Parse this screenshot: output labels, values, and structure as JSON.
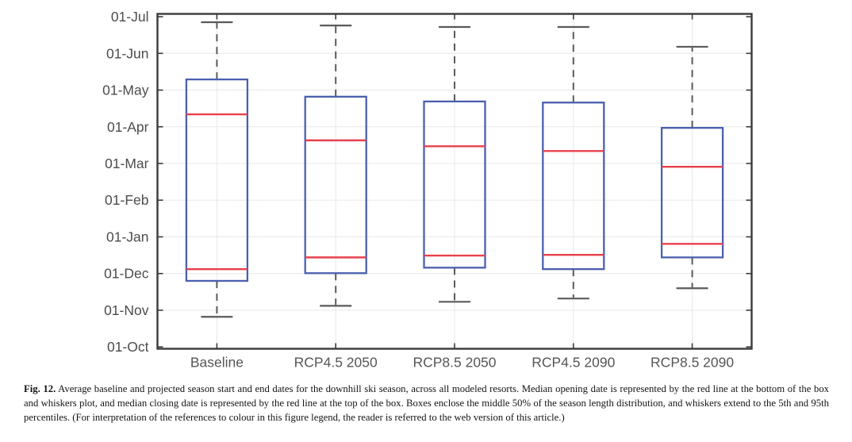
{
  "figure": {
    "caption_label": "Fig. 12.",
    "caption_text": " Average baseline and projected season start and end dates for the downhill ski season, across all modeled resorts. Median opening date is represented by the red line at the bottom of the box and whiskers plot, and median closing date is represented by the red line at the top of the box. Boxes enclose the middle 50% of the season length distribution, and whiskers extend to the 5th and 95th percentiles. (For interpretation of the references to colour in this figure legend, the reader is referred to the web version of this article.)"
  },
  "chart_data": {
    "type": "boxplot",
    "title": "",
    "xlabel": "",
    "ylabel": "",
    "grid": "both-light",
    "legend": "none",
    "categories": [
      "Baseline",
      "RCP4.5 2050",
      "RCP8.5 2050",
      "RCP4.5 2090",
      "RCP8.5 2090"
    ],
    "y_axis": {
      "unit": "months after 01-Oct",
      "ylim": [
        0,
        9.07
      ],
      "tick_values": [
        0,
        1,
        2,
        3,
        4,
        5,
        6,
        7,
        8,
        9
      ],
      "tick_labels": [
        "01-Oct",
        "01-Nov",
        "01-Dec",
        "01-Jan",
        "01-Feb",
        "01-Mar",
        "01-Apr",
        "01-May",
        "01-Jun",
        "01-Jul"
      ]
    },
    "series": [
      {
        "label": "Baseline",
        "whisker_low": 0.82,
        "box_low": 1.8,
        "median_open": 2.12,
        "median_close": 6.34,
        "box_high": 7.29,
        "whisker_high": 8.85,
        "approx_dates": {
          "whisker_low": "25 Oct",
          "box_low": "24 Nov",
          "median_open": "04 Dec",
          "median_close": "10 Apr",
          "box_high": "09 May",
          "whisker_high": "26 Jun"
        }
      },
      {
        "label": "RCP4.5 2050",
        "whisker_low": 1.12,
        "box_low": 2.01,
        "median_open": 2.44,
        "median_close": 5.63,
        "box_high": 6.82,
        "whisker_high": 8.76,
        "approx_dates": {
          "whisker_low": "04 Nov",
          "box_low": "01 Dec",
          "median_open": "13 Dec",
          "median_close": "19 Mar",
          "box_high": "25 Apr",
          "whisker_high": "24 Jun"
        }
      },
      {
        "label": "RCP8.5 2050",
        "whisker_low": 1.23,
        "box_low": 2.16,
        "median_open": 2.49,
        "median_close": 5.47,
        "box_high": 6.69,
        "whisker_high": 8.72,
        "approx_dates": {
          "whisker_low": "07 Nov",
          "box_low": "05 Dec",
          "median_open": "15 Dec",
          "median_close": "14 Mar",
          "box_high": "21 Apr",
          "whisker_high": "23 Jun"
        }
      },
      {
        "label": "RCP4.5 2090",
        "whisker_low": 1.32,
        "box_low": 2.12,
        "median_open": 2.51,
        "median_close": 5.34,
        "box_high": 6.66,
        "whisker_high": 8.72,
        "approx_dates": {
          "whisker_low": "10 Nov",
          "box_low": "04 Dec",
          "median_open": "16 Dec",
          "median_close": "10 Mar",
          "box_high": "20 Apr",
          "whisker_high": "23 Jun"
        }
      },
      {
        "label": "RCP8.5 2090",
        "whisker_low": 1.6,
        "box_low": 2.44,
        "median_open": 2.81,
        "median_close": 4.91,
        "box_high": 5.97,
        "whisker_high": 8.18,
        "approx_dates": {
          "whisker_low": "18 Nov",
          "box_low": "13 Dec",
          "median_open": "25 Dec",
          "median_close": "26 Feb",
          "box_high": "30 Mar",
          "whisker_high": "05 Jun"
        }
      }
    ],
    "colors": {
      "box": "#4a60ae",
      "median": "#e8404e",
      "whisker": "#5a5a5c",
      "frame": "#3a3a3a",
      "grid": "#e8e8e8",
      "y_tick_label": "#4c4c4c",
      "x_tick_label": "#565656",
      "background": "#ffffff"
    }
  }
}
